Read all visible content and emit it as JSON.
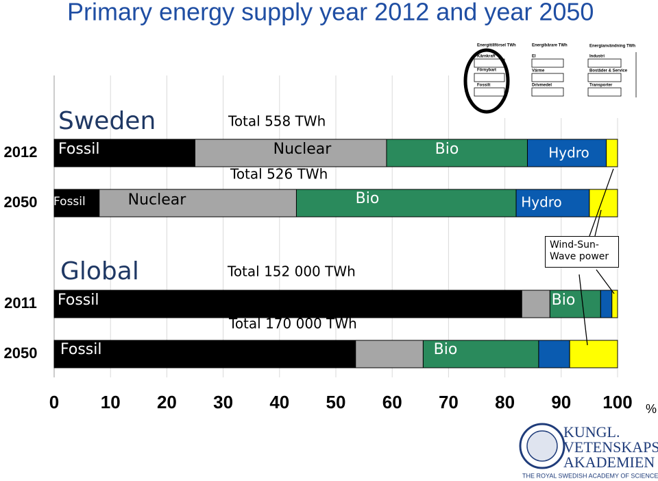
{
  "chart_data": {
    "type": "bar",
    "orientation": "horizontal",
    "stacked": true,
    "title": "Primary energy supply year 2012 and year 2050",
    "categories": [
      "2012",
      "2050",
      "2011",
      "2050"
    ],
    "series": [
      {
        "name": "Fossil",
        "color": "#000000",
        "values": [
          25,
          8,
          83,
          53.5
        ]
      },
      {
        "name": "Nuclear",
        "color": "#a6a6a6",
        "values": [
          34,
          35,
          5,
          12
        ]
      },
      {
        "name": "Bio",
        "color": "#2a8a5c",
        "values": [
          25,
          39,
          9,
          20.5
        ]
      },
      {
        "name": "Hydro",
        "color": "#0a5bb0",
        "values": [
          14,
          13,
          2,
          5.5
        ]
      },
      {
        "name": "Wind-Sun-Wave power",
        "color": "#ffff00",
        "values": [
          2,
          5,
          1,
          8.5
        ]
      }
    ],
    "xlim": [
      0,
      100
    ],
    "xticks": [
      0,
      10,
      20,
      30,
      40,
      50,
      60,
      70,
      80,
      90,
      100
    ],
    "xlabel": "%",
    "grid": true,
    "groups": [
      "Sweden",
      "Global"
    ],
    "totals": [
      "Total  558 TWh",
      "Total  526 TWh",
      "Total 152 000 TWh",
      "Total 170 000 TWh"
    ]
  },
  "inset": {
    "headers": [
      "Energitillförsel TWh",
      "Energibärare TWh",
      "Energianvändning TWh"
    ],
    "items": [
      "Kärnkraft",
      "Förnybart",
      "Fossilt",
      "El",
      "Värme",
      "Drivmedel",
      "Industri",
      "Bostäder & Service",
      "Transporter"
    ]
  },
  "logo": {
    "lines": [
      "KUNGL.",
      "VETENSKAPS",
      "AKADEMIEN"
    ],
    "tagline": "THE ROYAL SWEDISH ACADEMY OF SCIENCES"
  }
}
